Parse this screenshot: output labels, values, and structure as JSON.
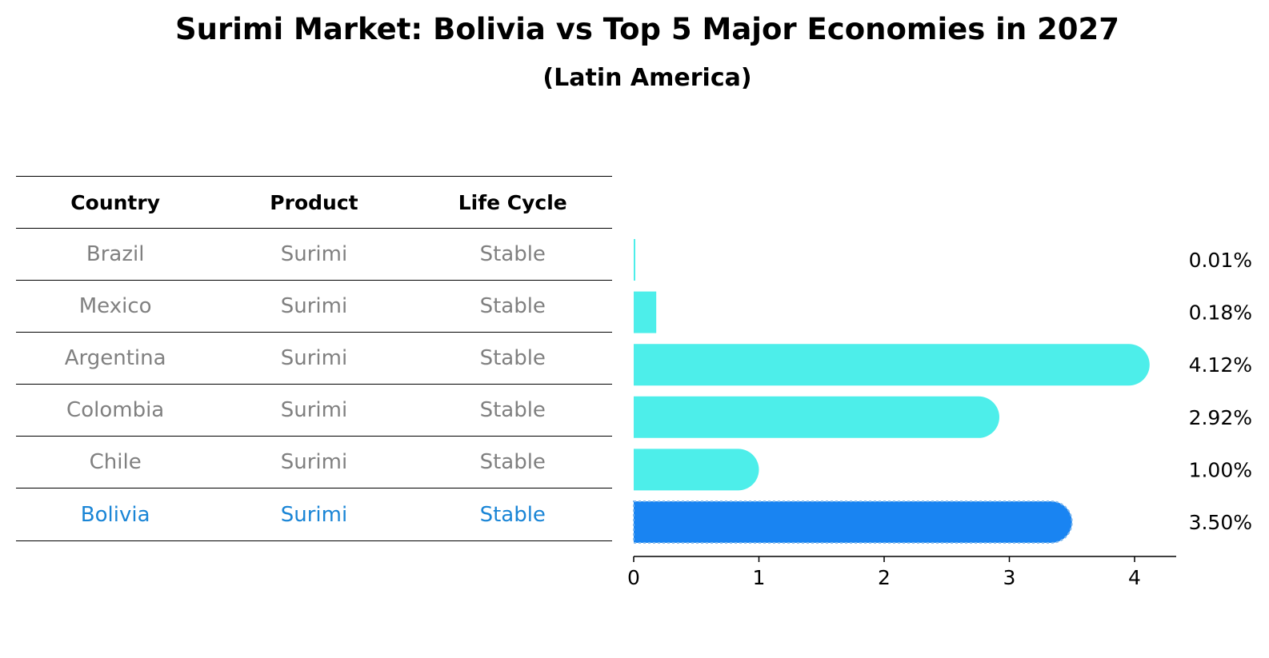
{
  "title": "Surimi Market: Bolivia vs Top 5 Major Economies in 2027",
  "subtitle": "(Latin America)",
  "table": {
    "headers": [
      "Country",
      "Product",
      "Life Cycle"
    ],
    "rows": [
      {
        "country": "Brazil",
        "product": "Surimi",
        "life_cycle": "Stable"
      },
      {
        "country": "Mexico",
        "product": "Surimi",
        "life_cycle": "Stable"
      },
      {
        "country": "Argentina",
        "product": "Surimi",
        "life_cycle": "Stable"
      },
      {
        "country": "Colombia",
        "product": "Surimi",
        "life_cycle": "Stable"
      },
      {
        "country": "Chile",
        "product": "Surimi",
        "life_cycle": "Stable"
      },
      {
        "country": "Bolivia",
        "product": "Surimi",
        "life_cycle": "Stable"
      }
    ]
  },
  "chart_data": {
    "type": "bar",
    "orientation": "horizontal",
    "categories": [
      "Brazil",
      "Mexico",
      "Argentina",
      "Colombia",
      "Chile",
      "Bolivia"
    ],
    "values": [
      0.01,
      0.18,
      4.12,
      2.92,
      1.0,
      3.5
    ],
    "value_labels": [
      "0.01%",
      "0.18%",
      "4.12%",
      "2.92%",
      "1.00%",
      "3.50%"
    ],
    "highlight": "Bolivia",
    "xlim": [
      0,
      4.33
    ],
    "xticks": [
      0,
      1,
      2,
      3,
      4
    ],
    "xlabel": "",
    "ylabel": "",
    "colors": {
      "default": "#4deeea",
      "highlight": "#1984f2"
    }
  }
}
